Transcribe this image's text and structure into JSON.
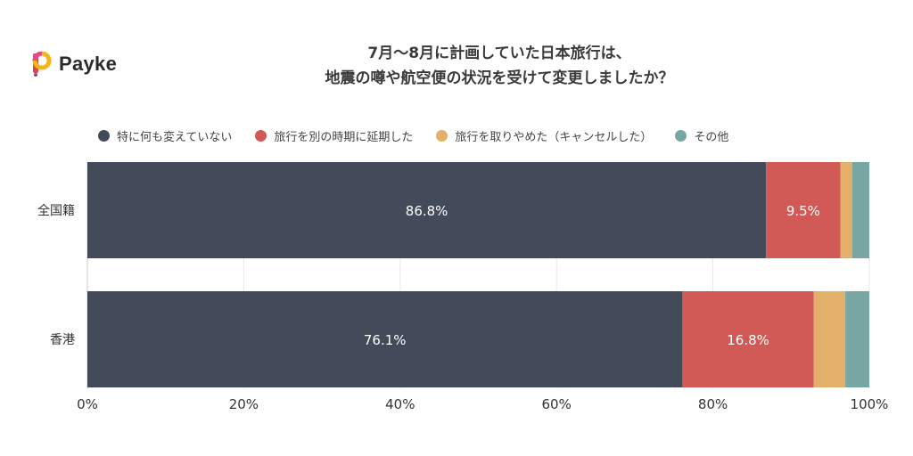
{
  "brand": {
    "name": "Payke"
  },
  "title_lines": [
    "7月〜8月に計画していた日本旅行は、",
    "地震の噂や航空便の状況を受けて変更しましたか？"
  ],
  "colors": {
    "series": [
      "#434a59",
      "#d15a57",
      "#e2b068",
      "#78a7a3"
    ],
    "grid": "#e8e8e8",
    "axis_text": "#333333"
  },
  "chart_data": {
    "type": "bar",
    "orientation": "horizontal",
    "stacked": true,
    "categories": [
      "全国籍",
      "香港"
    ],
    "series": [
      {
        "name": "特に何も変えていない",
        "values": [
          86.8,
          76.1
        ],
        "labels": [
          "86.8%",
          "76.1%"
        ]
      },
      {
        "name": "旅行を別の時期に延期した",
        "values": [
          9.5,
          16.8
        ],
        "labels": [
          "9.5%",
          "16.8%"
        ]
      },
      {
        "name": "旅行を取りやめた（キャンセルした）",
        "values": [
          1.5,
          4.0
        ],
        "labels": [
          "",
          ""
        ]
      },
      {
        "name": "その他",
        "values": [
          2.2,
          3.1
        ],
        "labels": [
          "",
          ""
        ]
      }
    ],
    "xlim": [
      0,
      100
    ],
    "xticks": [
      "0%",
      "20%",
      "40%",
      "60%",
      "80%",
      "100%"
    ],
    "grid": true,
    "legend_position": "top"
  }
}
